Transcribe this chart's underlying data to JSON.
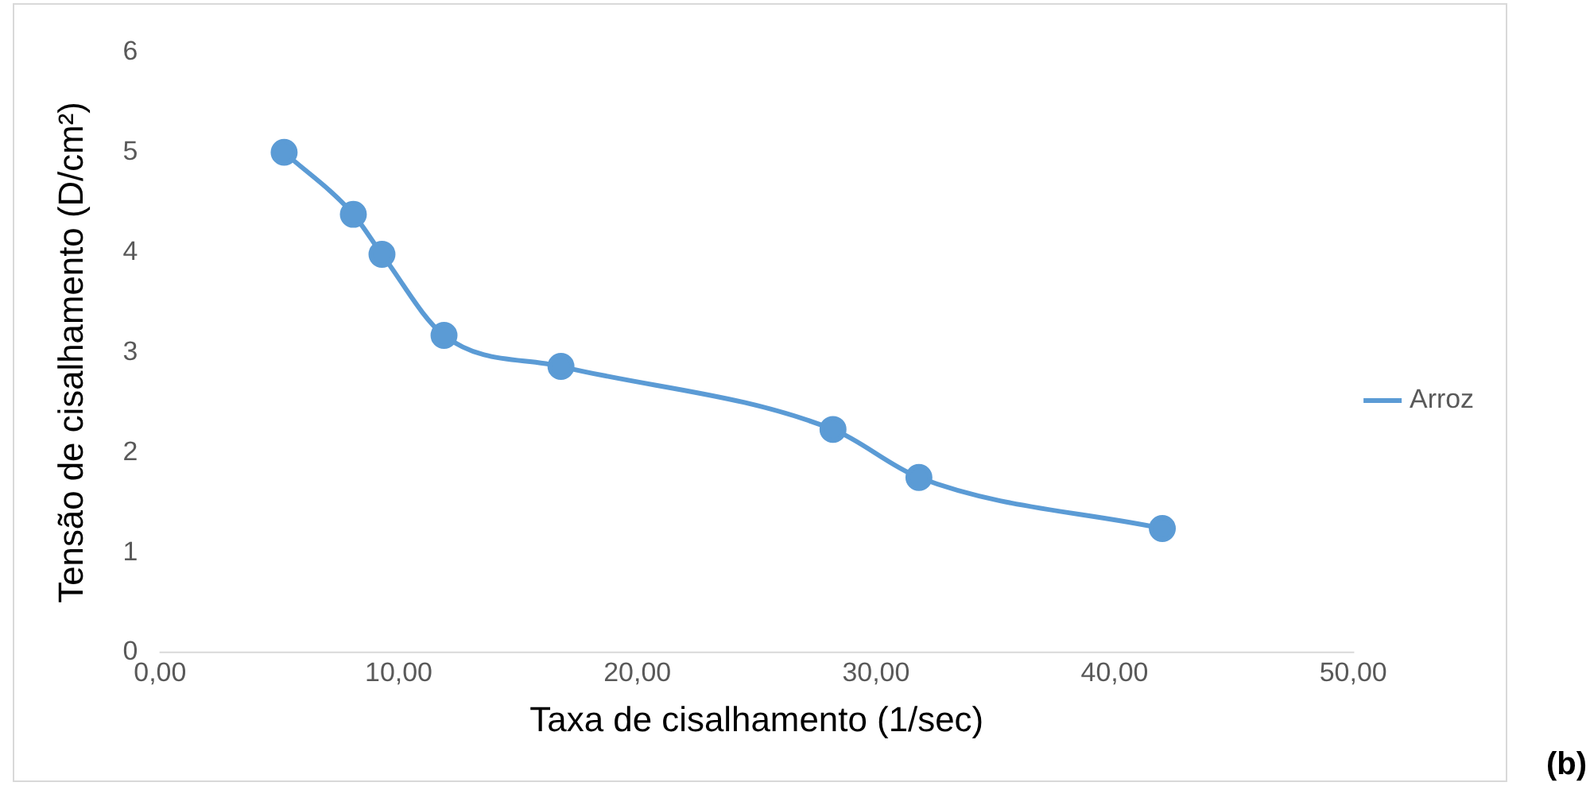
{
  "chart_data": {
    "type": "line",
    "xlabel": "Taxa de cisalhamento (1/sec)",
    "ylabel": "Tensão de cisalhamento (D/cm²)",
    "annotations": [
      "(b)"
    ],
    "series": [
      {
        "name": "Arroz",
        "color": "#5b9bd5",
        "x": [
          5.2,
          8.1,
          9.3,
          11.9,
          16.8,
          28.2,
          31.8,
          42.0
        ],
        "values": [
          5.0,
          4.38,
          3.98,
          3.17,
          2.86,
          2.23,
          1.75,
          1.24
        ]
      }
    ],
    "xlim": [
      0,
      50
    ],
    "xticks": [
      {
        "value": 0,
        "label": "0,00"
      },
      {
        "value": 10,
        "label": "10,00"
      },
      {
        "value": 20,
        "label": "20,00"
      },
      {
        "value": 30,
        "label": "30,00"
      },
      {
        "value": 40,
        "label": "40,00"
      },
      {
        "value": 50,
        "label": "50,00"
      }
    ],
    "ylim": [
      0,
      6
    ],
    "yticks": [
      0,
      1,
      2,
      3,
      4,
      5,
      6
    ],
    "grid": false,
    "legend": "right",
    "marker": "circle",
    "line_style": "solid"
  }
}
